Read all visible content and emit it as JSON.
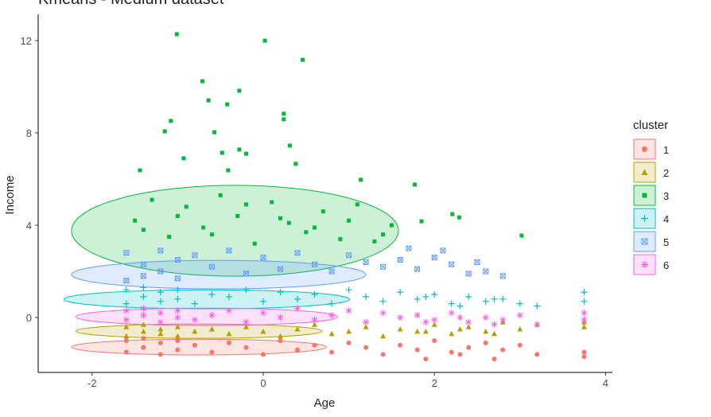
{
  "chart_data": {
    "type": "scatter",
    "title": "Kmeans - Medium dataset",
    "x_label": "Age",
    "y_label": "Income",
    "legend_title": "cluster",
    "legend": "right",
    "grid": false,
    "xlim": [
      -2.63,
      4.08
    ],
    "ylim": [
      -2.38,
      13.14
    ],
    "xticks": [
      -2,
      0,
      2,
      4
    ],
    "yticks": [
      0,
      4,
      8,
      12
    ],
    "series": [
      {
        "name": "1",
        "color": "#F8766D",
        "shape": "circle",
        "x": [
          -1.6,
          -1.6,
          -1.4,
          -1.4,
          -1.2,
          -1.2,
          -1,
          -1,
          -0.8,
          -0.6,
          -0.4,
          -0.2,
          0,
          0.2,
          0.4,
          0.6,
          0.8,
          1,
          1.2,
          1.4,
          1.6,
          1.8,
          2,
          2.2,
          2.4,
          2.6,
          2.8,
          3,
          3.2,
          3.75,
          3.75,
          1.9,
          2.3,
          2.7
        ],
        "values": [
          -1.5,
          -1.0,
          -1.3,
          -0.9,
          -1.6,
          -1.1,
          -1.4,
          -1.0,
          -1.2,
          -1.5,
          -1.1,
          -1.3,
          -1.6,
          -1.0,
          -1.4,
          -1.2,
          -1.5,
          -1.1,
          -1.3,
          -1.6,
          -1.2,
          -1.4,
          -1.0,
          -1.5,
          -1.3,
          -1.1,
          -1.4,
          -1.2,
          -1.6,
          -1.5,
          -1.7,
          -1.8,
          -1.6,
          -1.8
        ],
        "ellipse": {
          "x": -0.75,
          "y": -1.28,
          "rx": 1.49,
          "ry": 0.34
        }
      },
      {
        "name": "2",
        "color": "#B79F00",
        "shape": "triangle",
        "x": [
          -1.6,
          -1.6,
          -1.4,
          -1.4,
          -1.2,
          -1.2,
          -1,
          -1,
          -0.8,
          -0.6,
          -0.4,
          -0.2,
          0,
          0.2,
          0.4,
          0.6,
          0.8,
          1,
          1.2,
          1.4,
          1.6,
          1.8,
          2,
          2.2,
          2.4,
          2.6,
          2.8,
          3,
          3.2,
          3.75,
          3.75,
          1.9,
          2.3,
          2.7
        ],
        "values": [
          -0.8,
          -0.4,
          -0.6,
          -0.3,
          -0.7,
          -0.5,
          -0.8,
          -0.4,
          -0.6,
          -0.5,
          -0.7,
          -0.4,
          -0.6,
          -0.8,
          -0.5,
          -0.3,
          -0.7,
          -0.6,
          -0.4,
          -0.8,
          -0.5,
          -0.6,
          -0.3,
          -0.7,
          -0.4,
          -0.6,
          -0.2,
          -0.5,
          -0.3,
          -0.2,
          -0.4,
          -0.6,
          -0.5,
          -0.7
        ],
        "ellipse": {
          "x": -0.75,
          "y": -0.59,
          "rx": 1.44,
          "ry": 0.31
        }
      },
      {
        "name": "3",
        "color": "#00BA38",
        "shape": "square",
        "x": [
          -1.5,
          -1.3,
          -1.1,
          -0.9,
          -0.7,
          -0.5,
          -0.3,
          -0.1,
          0.1,
          0.3,
          0.5,
          0.7,
          0.9,
          1.1,
          1.3,
          1.5,
          -1.4,
          -1.0,
          -0.6,
          -0.2,
          0.2,
          0.6,
          1.0,
          1.4,
          -1.01,
          0.02,
          0.46,
          -0.71,
          -0.28,
          -0.64,
          -0.42,
          -1.08,
          0.24,
          0.24,
          -1.15,
          -0.57,
          0.31,
          -0.28,
          -0.2,
          -0.48,
          -0.93,
          0.38,
          -0.41,
          -1.44,
          1.14,
          1.77,
          3.02,
          2.21,
          2.29,
          1.85
        ],
        "values": [
          4.2,
          5.1,
          3.5,
          4.8,
          3.9,
          5.3,
          4.4,
          3.2,
          5.0,
          4.1,
          3.7,
          4.6,
          3.4,
          4.9,
          3.3,
          4.0,
          3.8,
          4.4,
          3.6,
          4.9,
          4.3,
          3.9,
          4.2,
          3.6,
          12.28,
          12.0,
          11.17,
          10.24,
          9.83,
          9.41,
          9.24,
          8.52,
          8.83,
          8.59,
          8.07,
          8.03,
          7.45,
          7.28,
          7.1,
          7.14,
          6.9,
          6.66,
          6.38,
          6.38,
          5.97,
          5.76,
          3.55,
          4.48,
          4.34,
          4.17
        ],
        "ellipse": {
          "x": -0.33,
          "y": 3.76,
          "rx": 1.91,
          "ry": 1.97
        }
      },
      {
        "name": "4",
        "color": "#00BFC4",
        "shape": "plus",
        "x": [
          -1.6,
          -1.6,
          -1.4,
          -1.4,
          -1.2,
          -1.2,
          -1,
          -1,
          -0.8,
          -0.6,
          -0.4,
          -0.2,
          0,
          0.2,
          0.4,
          0.6,
          0.8,
          1,
          1.2,
          1.4,
          1.6,
          1.8,
          2,
          2.2,
          2.4,
          2.6,
          2.8,
          3,
          3.2,
          3.75,
          3.75,
          1.9,
          2.3,
          2.7
        ],
        "values": [
          1.2,
          0.6,
          0.9,
          1.3,
          0.7,
          1.1,
          0.8,
          1.2,
          0.6,
          1.0,
          0.9,
          1.2,
          0.7,
          1.1,
          0.8,
          1.0,
          0.6,
          1.2,
          0.9,
          0.7,
          1.1,
          0.8,
          1.0,
          0.6,
          0.9,
          0.7,
          0.8,
          0.6,
          0.5,
          1.1,
          0.7,
          0.9,
          0.5,
          0.8
        ],
        "ellipse": {
          "x": -0.66,
          "y": 0.79,
          "rx": 1.67,
          "ry": 0.41
        }
      },
      {
        "name": "5",
        "color": "#619CFF",
        "shape": "square-x",
        "x": [
          -1.6,
          -1.6,
          -1.4,
          -1.4,
          -1.2,
          -1.2,
          -1,
          -1,
          -0.8,
          -0.6,
          -0.4,
          -0.2,
          0,
          0.2,
          0.4,
          0.6,
          0.8,
          1,
          1.2,
          1.4,
          1.6,
          1.8,
          2,
          2.2,
          2.4,
          2.6,
          2.8,
          1.7,
          2.1,
          2.5
        ],
        "values": [
          2.8,
          1.6,
          2.3,
          1.8,
          2.9,
          2.0,
          2.5,
          1.7,
          2.7,
          2.2,
          2.9,
          1.9,
          2.6,
          2.1,
          2.8,
          2.3,
          2.0,
          2.7,
          2.4,
          2.2,
          2.5,
          2.1,
          2.6,
          2.3,
          1.9,
          2.0,
          1.8,
          3.0,
          2.9,
          2.4
        ],
        "ellipse": {
          "x": -0.52,
          "y": 1.86,
          "rx": 1.72,
          "ry": 0.62
        }
      },
      {
        "name": "6",
        "color": "#F564E3",
        "shape": "asterisk",
        "x": [
          -1.6,
          -1.6,
          -1.4,
          -1.4,
          -1.2,
          -1.2,
          -1,
          -1,
          -0.8,
          -0.6,
          -0.4,
          -0.2,
          0,
          0.2,
          0.4,
          0.6,
          0.8,
          1,
          1.2,
          1.4,
          1.6,
          1.8,
          2,
          2.2,
          2.4,
          2.6,
          2.8,
          3,
          3.2,
          3.75,
          3.75,
          1.9,
          2.3,
          2.7
        ],
        "values": [
          0.3,
          -0.1,
          0.1,
          0.4,
          -0.2,
          0.2,
          0,
          0.3,
          -0.1,
          0.1,
          0.3,
          -0.2,
          0.2,
          0,
          0.4,
          -0.1,
          0.1,
          0.3,
          -0.2,
          0.2,
          0,
          0.1,
          -0.1,
          0.2,
          -0.2,
          0,
          -0.1,
          0.1,
          -0.3,
          0.2,
          -0.1,
          -0.2,
          0,
          -0.3
        ],
        "ellipse": {
          "x": -0.66,
          "y": 0.03,
          "rx": 1.53,
          "ry": 0.38
        }
      }
    ]
  }
}
